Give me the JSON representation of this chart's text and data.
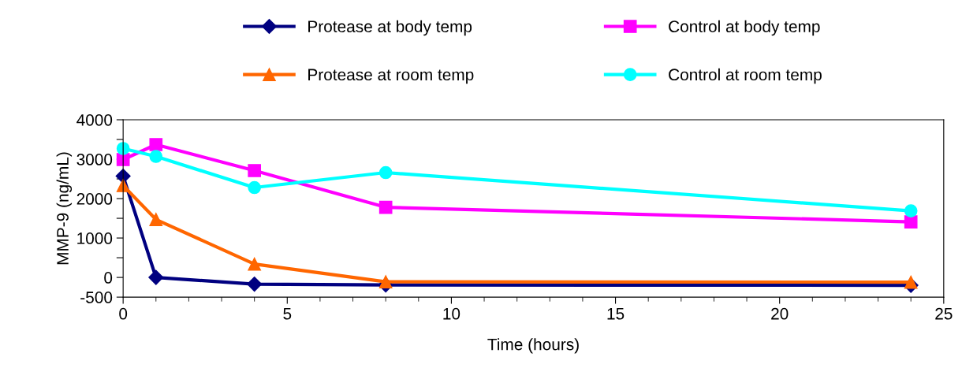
{
  "chart_data": {
    "type": "line",
    "xlabel": "Time (hours)",
    "ylabel": "MMP-9 (ng/mL)",
    "x": [
      0,
      1,
      4,
      8,
      24
    ],
    "series": [
      {
        "name": "Protease at body temp",
        "color": "#000080",
        "marker": "diamond",
        "values": [
          2570,
          0,
          -170,
          -190,
          -200
        ]
      },
      {
        "name": "Protease at room temp",
        "color": "#ff6600",
        "marker": "triangle",
        "values": [
          2330,
          1470,
          340,
          -110,
          -120
        ]
      },
      {
        "name": "Control at body temp",
        "color": "#ff00ff",
        "marker": "square",
        "values": [
          2990,
          3370,
          2710,
          1780,
          1410
        ]
      },
      {
        "name": "Control at room temp",
        "color": "#00ffff",
        "marker": "circle",
        "values": [
          3270,
          3070,
          2280,
          2660,
          1690
        ]
      }
    ],
    "xlim": [
      0,
      25
    ],
    "xticks": [
      0,
      5,
      10,
      15,
      20,
      25
    ],
    "ylim": [
      -500,
      4000
    ],
    "yticks": [
      -500,
      0,
      {
        "value": 500,
        "label": null
      },
      1000,
      {
        "value": 1500,
        "label": null
      },
      2000,
      {
        "value": 2500,
        "label": null
      },
      3000,
      {
        "value": 3500,
        "label": null
      },
      4000
    ],
    "grid": false,
    "legend": "top",
    "line_style": "solid"
  }
}
